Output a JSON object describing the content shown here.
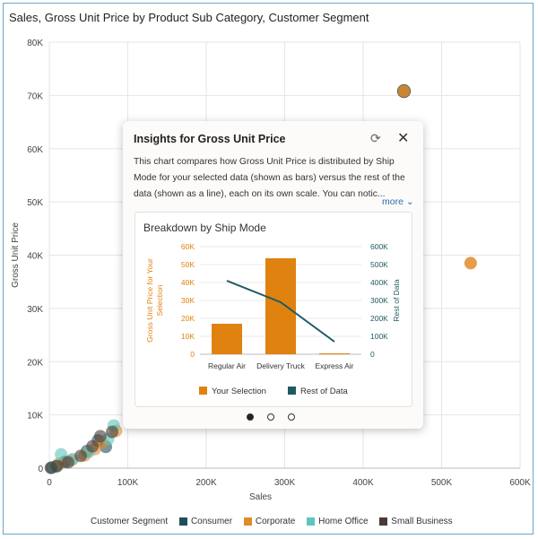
{
  "chart_data": {
    "type": "scatter",
    "title": "Sales, Gross Unit Price by Product Sub Category, Customer Segment",
    "xlabel": "Sales",
    "ylabel": "Gross Unit Price",
    "xlim": [
      0,
      600000
    ],
    "ylim": [
      0,
      80000
    ],
    "x_ticks": [
      "0",
      "100K",
      "200K",
      "300K",
      "400K",
      "500K",
      "600K"
    ],
    "y_ticks": [
      "0",
      "10K",
      "20K",
      "30K",
      "40K",
      "50K",
      "60K",
      "70K",
      "80K"
    ],
    "legend_title": "Customer Segment",
    "series": [
      {
        "name": "Consumer",
        "color": "#1f4e5a",
        "points": [
          [
            3000,
            100
          ],
          [
            8000,
            300
          ],
          [
            20000,
            1200
          ],
          [
            48000,
            3200
          ],
          [
            62000,
            5200
          ],
          [
            72000,
            4000
          ],
          [
            452000,
            70800
          ]
        ]
      },
      {
        "name": "Corporate",
        "color": "#e08b2c",
        "points": [
          [
            12000,
            800
          ],
          [
            28000,
            1500
          ],
          [
            45000,
            2400
          ],
          [
            58000,
            3600
          ],
          [
            68000,
            4800
          ],
          [
            85000,
            7000
          ],
          [
            452000,
            70800
          ],
          [
            537000,
            38500
          ]
        ]
      },
      {
        "name": "Home Office",
        "color": "#5ec4be",
        "points": [
          [
            6000,
            200
          ],
          [
            15000,
            2600
          ],
          [
            30000,
            1700
          ],
          [
            50000,
            3000
          ],
          [
            75000,
            5500
          ],
          [
            82000,
            8000
          ]
        ]
      },
      {
        "name": "Small Business",
        "color": "#4a3a36",
        "points": [
          [
            2000,
            50
          ],
          [
            10000,
            400
          ],
          [
            24000,
            1100
          ],
          [
            40000,
            2300
          ],
          [
            55000,
            4100
          ],
          [
            65000,
            6000
          ],
          [
            80000,
            6800
          ]
        ]
      }
    ]
  },
  "insights": {
    "title": "Insights for Gross Unit Price",
    "description": "This chart compares how Gross Unit Price is distributed by Ship Mode for your selected data (shown as bars) versus the rest of the data (shown as a line), each on its own scale. You can notic...",
    "more_label": "more",
    "more_arrow": "⌄",
    "refresh_glyph": "⟳",
    "close_glyph": "✕",
    "chart_data": {
      "type": "bar",
      "title": "Breakdown by Ship Mode",
      "categories": [
        "Regular Air",
        "Delivery Truck",
        "Express Air"
      ],
      "series": [
        {
          "name": "Your Selection",
          "type": "bar",
          "color": "#e0820f",
          "values": [
            17000,
            53500,
            500
          ]
        },
        {
          "name": "Rest of Data",
          "type": "line",
          "color": "#1f5a63",
          "values": [
            410000,
            290000,
            70000
          ]
        }
      ],
      "ylabel": "Gross Unit Price for Your Selection",
      "y2label": "Rest of Data",
      "ylim": [
        0,
        60000
      ],
      "y2lim": [
        0,
        600000
      ],
      "y_ticks": [
        "0",
        "10K",
        "20K",
        "30K",
        "40K",
        "50K",
        "60K"
      ],
      "y2_ticks": [
        "0",
        "100K",
        "200K",
        "300K",
        "400K",
        "500K",
        "600K"
      ]
    }
  },
  "colors": {
    "consumer": "#1f4e5a",
    "corporate": "#e08b2c",
    "home_office": "#5ec4be",
    "small_business": "#4a3a36"
  }
}
